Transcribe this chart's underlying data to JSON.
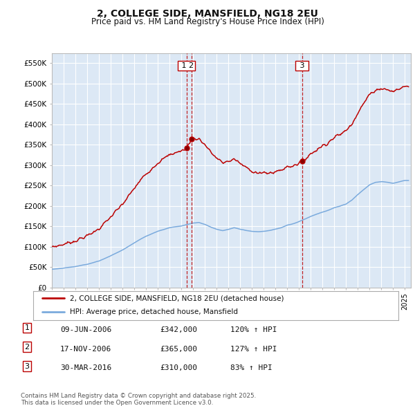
{
  "title": "2, COLLEGE SIDE, MANSFIELD, NG18 2EU",
  "subtitle": "Price paid vs. HM Land Registry's House Price Index (HPI)",
  "legend_line1": "2, COLLEGE SIDE, MANSFIELD, NG18 2EU (detached house)",
  "legend_line2": "HPI: Average price, detached house, Mansfield",
  "red_color": "#bb0000",
  "blue_color": "#7aaadd",
  "background_color": "#dce8f5",
  "grid_color": "#ffffff",
  "ylim": [
    0,
    575000
  ],
  "yticks": [
    0,
    50000,
    100000,
    150000,
    200000,
    250000,
    300000,
    350000,
    400000,
    450000,
    500000,
    550000
  ],
  "ytick_labels": [
    "£0",
    "£50K",
    "£100K",
    "£150K",
    "£200K",
    "£250K",
    "£300K",
    "£350K",
    "£400K",
    "£450K",
    "£500K",
    "£550K"
  ],
  "sale1_date": 2006.44,
  "sale1_price": 342000,
  "sale1_label": "1",
  "sale2_date": 2006.89,
  "sale2_price": 365000,
  "sale2_label": "2",
  "sale3_date": 2016.25,
  "sale3_price": 310000,
  "sale3_label": "3",
  "table_data": [
    [
      "1",
      "09-JUN-2006",
      "£342,000",
      "120% ↑ HPI"
    ],
    [
      "2",
      "17-NOV-2006",
      "£365,000",
      "127% ↑ HPI"
    ],
    [
      "3",
      "30-MAR-2016",
      "£310,000",
      "83% ↑ HPI"
    ]
  ],
  "footnote": "Contains HM Land Registry data © Crown copyright and database right 2025.\nThis data is licensed under the Open Government Licence v3.0."
}
